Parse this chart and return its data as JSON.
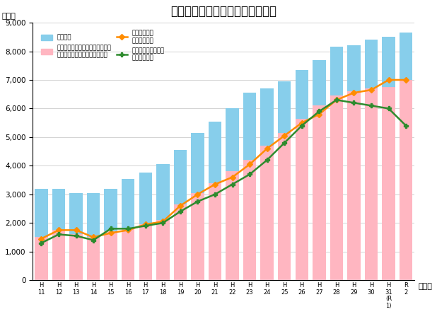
{
  "title": "リーガルサポート正会員数の推移",
  "ylabel": "（名）",
  "xlabel_suffix": "（年）",
  "ylim": [
    0,
    9000
  ],
  "yticks": [
    0,
    1000,
    2000,
    3000,
    4000,
    5000,
    6000,
    7000,
    8000,
    9000
  ],
  "seiin_blue": [
    3200,
    3200,
    3050,
    3050,
    3200,
    3550,
    3750,
    4050,
    4550,
    5150,
    5550,
    6000,
    6550,
    6700,
    6950,
    7350,
    7700,
    8150,
    8200,
    8400,
    8500,
    8650
  ],
  "seiin_pink": [
    1500,
    1750,
    1600,
    1500,
    1700,
    1800,
    1950,
    2100,
    2650,
    3050,
    3400,
    3800,
    4200,
    4700,
    5150,
    5650,
    6100,
    6450,
    6600,
    6700,
    6750,
    7000
  ],
  "kouho_orange": [
    1450,
    1750,
    1750,
    1500,
    1650,
    1750,
    1950,
    2050,
    2600,
    3000,
    3350,
    3600,
    4050,
    4600,
    5050,
    5500,
    5800,
    6300,
    6550,
    6650,
    7000,
    7000
  ],
  "kansatsu_green": [
    1300,
    1600,
    1550,
    1400,
    1800,
    1800,
    1900,
    2000,
    2400,
    2750,
    3000,
    3350,
    3700,
    4200,
    4800,
    5400,
    5900,
    6300,
    6200,
    6100,
    6000,
    5400
  ],
  "color_blue_bar": "#87CEEB",
  "color_pink_bar": "#FFB6C1",
  "color_orange_line": "#FF8C00",
  "color_green_line": "#2E8B2E",
  "legend_label_blue": "正会員数",
  "legend_label_pink": "後見人及び後見監督人候補者名簿\nいずれかに登載している会員数",
  "legend_label_orange": "後見人候補者\n名簿登載者数",
  "legend_label_green": "後見人監督人候補者\n名簿登載者数"
}
